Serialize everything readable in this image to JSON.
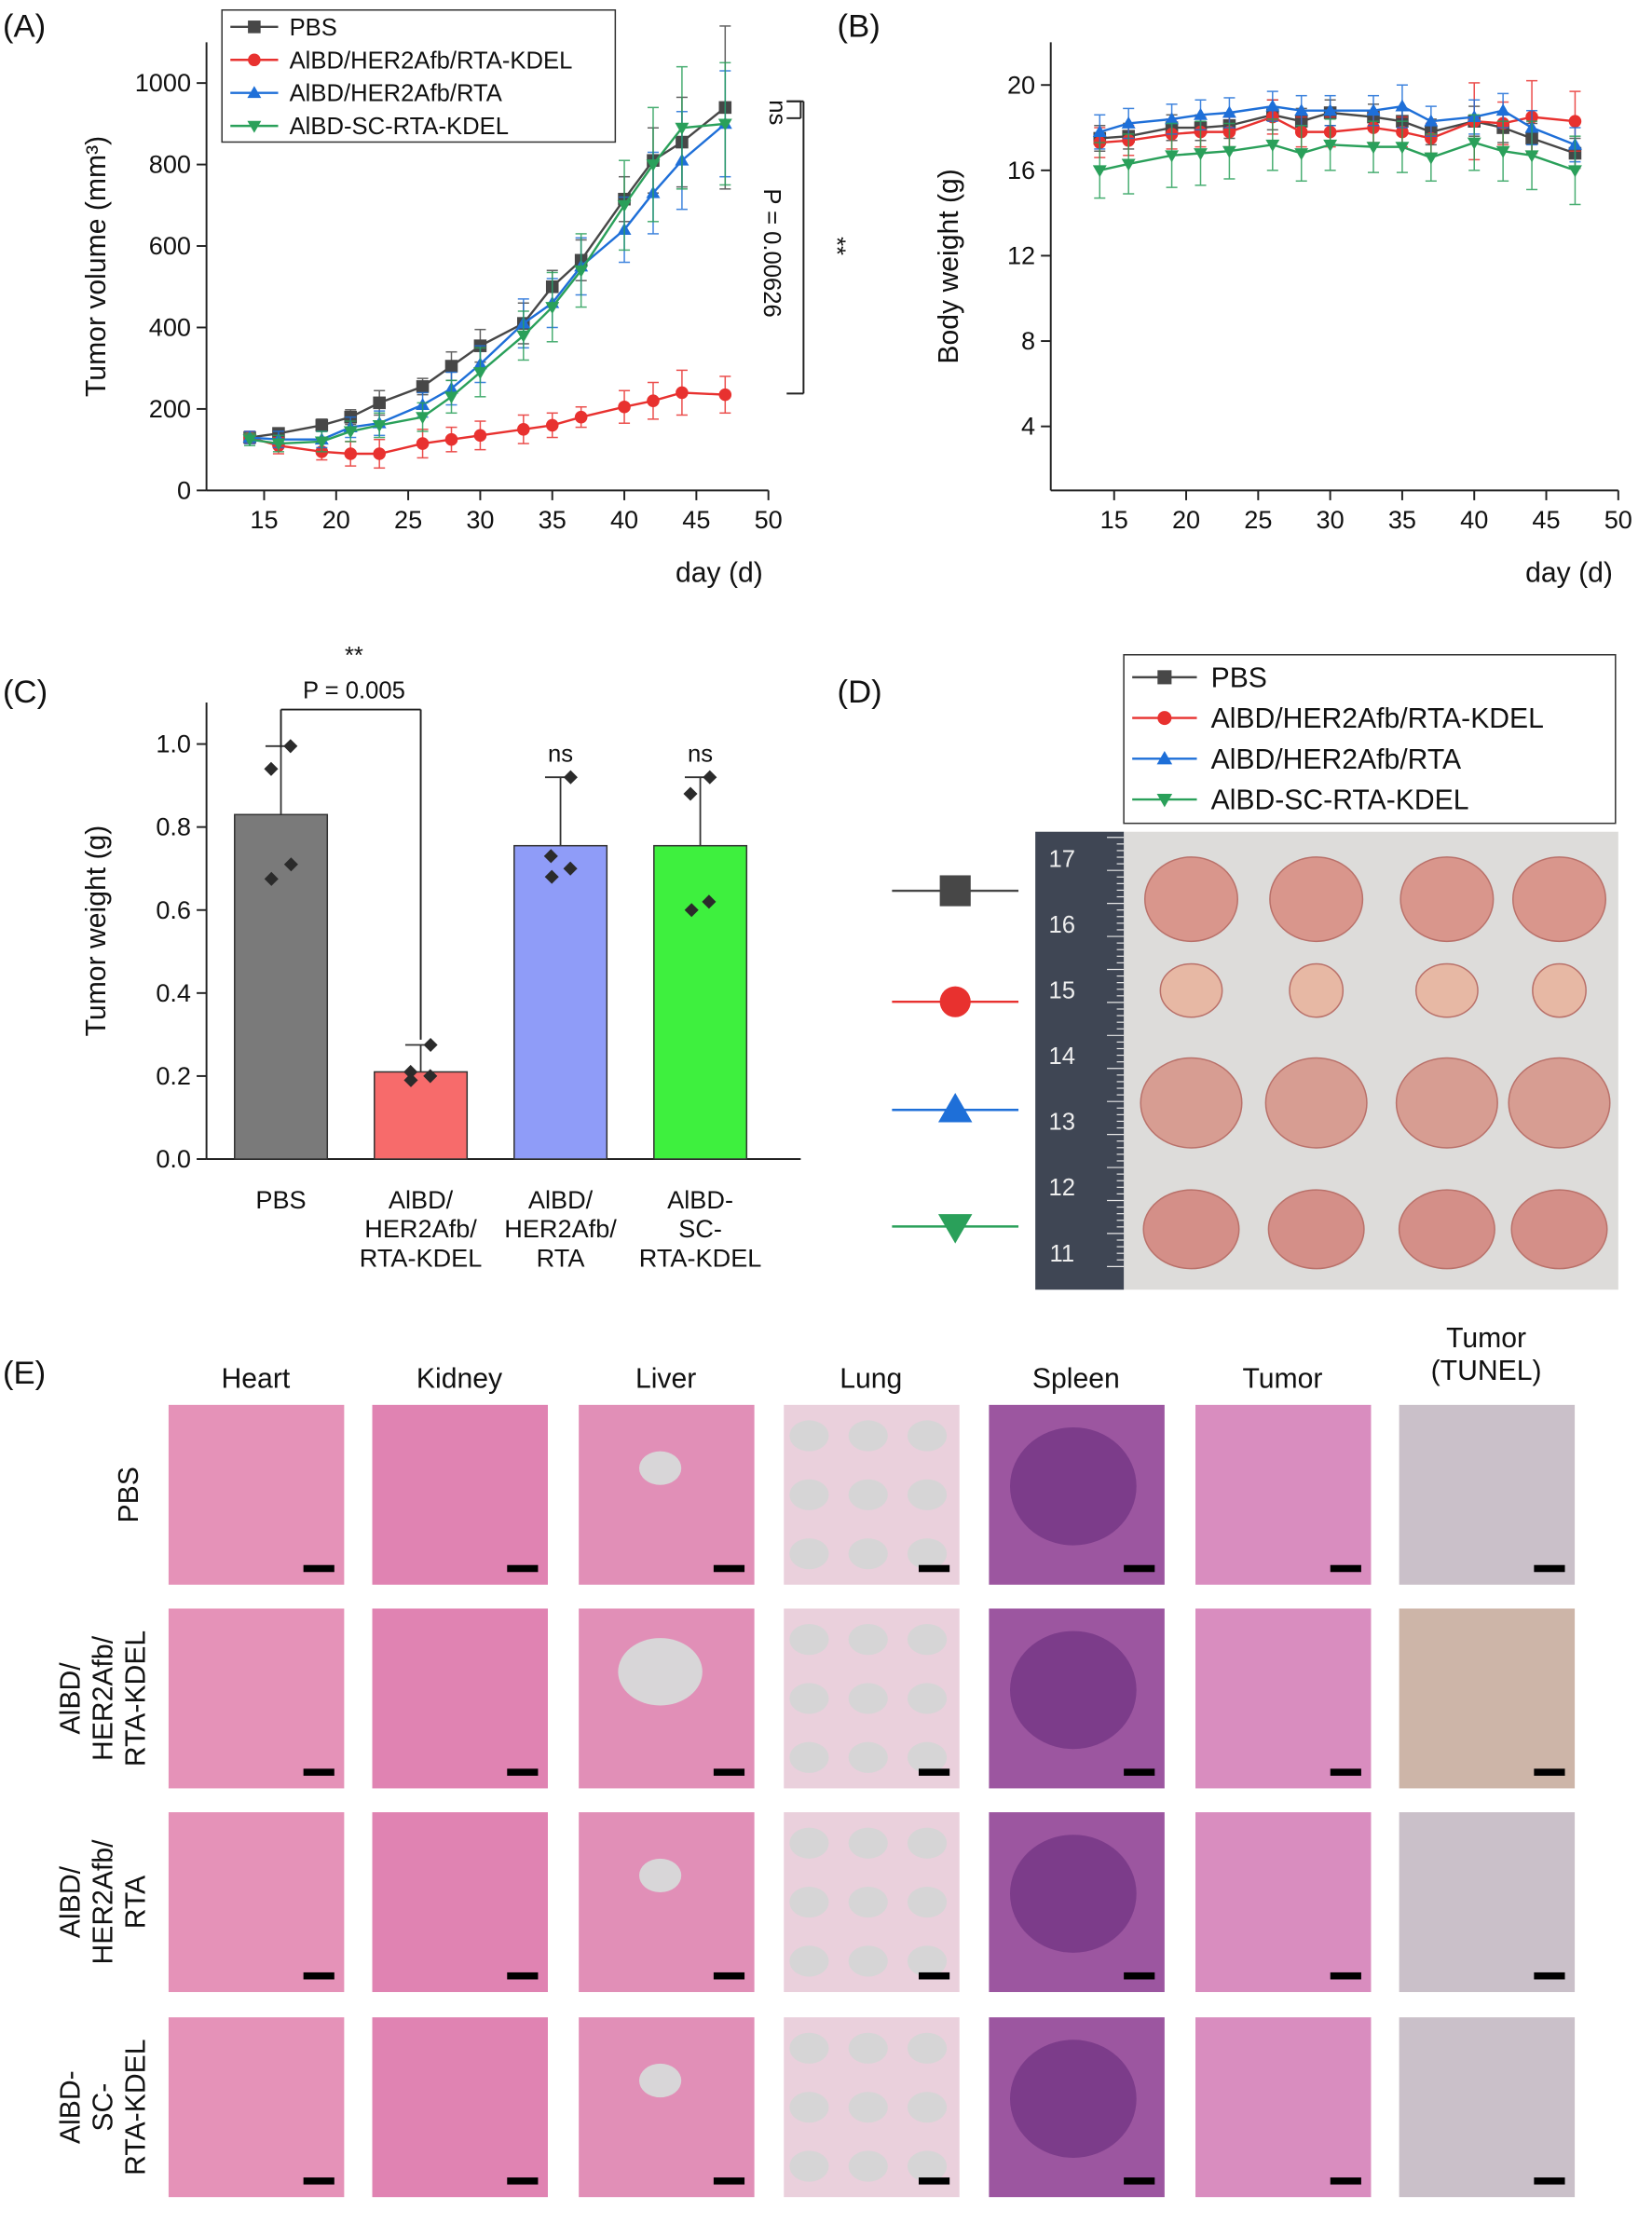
{
  "chart_data": [
    {
      "type": "line",
      "panel_label": "(A)",
      "y_label": "Tumor volume (mm³)",
      "x_label": "day (d)",
      "x": [
        14,
        16,
        19,
        21,
        23,
        26,
        28,
        30,
        33,
        35,
        37,
        40,
        42,
        44,
        47
      ],
      "xlim": [
        11,
        50
      ],
      "xticks": [
        15,
        20,
        25,
        30,
        35,
        40,
        45,
        50
      ],
      "ylim": [
        0,
        1100
      ],
      "yticks": [
        0,
        200,
        400,
        600,
        800,
        1000
      ],
      "legend": "upper left",
      "series": [
        {
          "name": "PBS",
          "color": "#474747",
          "marker": "square",
          "values": [
            130,
            140,
            160,
            180,
            215,
            255,
            305,
            355,
            410,
            500,
            565,
            715,
            810,
            855,
            940
          ],
          "errors": [
            12,
            12,
            15,
            18,
            30,
            20,
            35,
            40,
            50,
            40,
            50,
            55,
            80,
            110,
            200
          ]
        },
        {
          "name": "AlBD/HER2Afb/RTA-KDEL",
          "color": "#e8312f",
          "marker": "circle",
          "values": [
            130,
            110,
            95,
            90,
            90,
            115,
            125,
            135,
            150,
            160,
            180,
            205,
            220,
            240,
            235
          ],
          "errors": [
            15,
            20,
            20,
            30,
            35,
            35,
            30,
            35,
            35,
            30,
            25,
            40,
            45,
            55,
            45
          ]
        },
        {
          "name": "AlBD/HER2Afb/RTA",
          "color": "#1e6fd8",
          "marker": "tri-up",
          "values": [
            130,
            125,
            125,
            155,
            165,
            210,
            250,
            310,
            410,
            460,
            550,
            640,
            730,
            810,
            900
          ],
          "errors": [
            15,
            20,
            20,
            25,
            30,
            30,
            40,
            45,
            60,
            60,
            70,
            80,
            100,
            120,
            130
          ]
        },
        {
          "name": "AlBD-SC-RTA-KDEL",
          "color": "#2aa05a",
          "marker": "tri-down",
          "values": [
            125,
            115,
            120,
            145,
            160,
            180,
            230,
            290,
            380,
            450,
            540,
            700,
            800,
            890,
            900
          ],
          "errors": [
            15,
            20,
            25,
            25,
            30,
            35,
            40,
            60,
            60,
            85,
            90,
            110,
            140,
            150,
            150
          ]
        }
      ],
      "annotations": [
        "ns",
        "P = 0.00626",
        "**"
      ]
    },
    {
      "type": "line",
      "panel_label": "(B)",
      "y_label": "Body weight (g)",
      "x_label": "day (d)",
      "x": [
        14,
        16,
        19,
        21,
        23,
        26,
        28,
        30,
        33,
        35,
        37,
        40,
        42,
        44,
        47
      ],
      "xlim": [
        10.6,
        50
      ],
      "xticks": [
        15,
        20,
        25,
        30,
        35,
        40,
        45,
        50
      ],
      "ylim": [
        1,
        22
      ],
      "yticks": [
        4,
        8,
        12,
        16,
        20
      ],
      "series": [
        {
          "name": "PBS",
          "color": "#474747",
          "marker": "square",
          "values": [
            17.5,
            17.6,
            18,
            18,
            18.1,
            18.6,
            18.3,
            18.7,
            18.5,
            18.3,
            17.8,
            18.3,
            18,
            17.5,
            16.8
          ],
          "errors": [
            0.6,
            0.6,
            0.6,
            0.6,
            0.6,
            0.7,
            0.6,
            0.6,
            0.6,
            0.6,
            0.6,
            0.7,
            0.7,
            0.7,
            0.7
          ]
        },
        {
          "name": "AlBD/HER2Afb/RTA-KDEL",
          "color": "#e8312f",
          "marker": "circle",
          "values": [
            17.3,
            17.4,
            17.7,
            17.8,
            17.8,
            18.5,
            17.8,
            17.8,
            18,
            17.8,
            17.5,
            18.3,
            18.2,
            18.5,
            18.3
          ],
          "errors": [
            0.7,
            0.7,
            0.7,
            0.7,
            0.7,
            0.8,
            0.7,
            0.7,
            0.7,
            0.7,
            0.7,
            1.8,
            1,
            1.7,
            1.4
          ]
        },
        {
          "name": "AlBD/HER2Afb/RTA",
          "color": "#1e6fd8",
          "marker": "tri-up",
          "values": [
            17.8,
            18.2,
            18.4,
            18.6,
            18.7,
            19,
            18.8,
            18.8,
            18.8,
            19,
            18.3,
            18.5,
            18.8,
            18,
            17.2
          ],
          "errors": [
            0.8,
            0.7,
            0.7,
            0.7,
            0.7,
            0.7,
            0.7,
            0.7,
            0.7,
            1,
            0.7,
            0.8,
            0.8,
            0.8,
            0.8
          ]
        },
        {
          "name": "AlBD-SC-RTA-KDEL",
          "color": "#2aa05a",
          "marker": "tri-down",
          "values": [
            16,
            16.3,
            16.7,
            16.8,
            16.9,
            17.2,
            16.8,
            17.2,
            17.1,
            17.1,
            16.6,
            17.3,
            16.9,
            16.7,
            16
          ],
          "errors": [
            1.3,
            1.4,
            1.5,
            1.5,
            1.3,
            1.2,
            1.3,
            1.2,
            1.2,
            1.2,
            1.1,
            1.3,
            1.4,
            1.6,
            1.6
          ]
        }
      ]
    },
    {
      "type": "bar",
      "panel_label": "(C)",
      "y_label": "Tumor weight (g)",
      "categories": [
        "PBS",
        "AlBD/\nHER2Afb/\nRTA-KDEL",
        "AlBD/\nHER2Afb/\nRTA",
        "AlBD-\nSC-\nRTA-KDEL"
      ],
      "values": [
        0.83,
        0.21,
        0.755,
        0.755
      ],
      "errors": [
        0.165,
        0.065,
        0.165,
        0.165
      ],
      "colors": [
        "#7a7a7a",
        "#f76b6b",
        "#8f9cf8",
        "#3ef03e"
      ],
      "points": [
        [
          0.995,
          0.94,
          0.71,
          0.675
        ],
        [
          0.275,
          0.21,
          0.2,
          0.19
        ],
        [
          0.92,
          0.73,
          0.7,
          0.68
        ],
        [
          0.92,
          0.88,
          0.62,
          0.6
        ]
      ],
      "ylim": [
        0,
        1.1
      ],
      "yticks": [
        {
          "value": 0,
          "label": "0.0"
        },
        0.2,
        0.4,
        0.6,
        0.8,
        {
          "value": 1,
          "label": "1.0"
        }
      ],
      "annotations": [
        "**",
        "P = 0.005",
        "ns",
        "ns"
      ]
    }
  ],
  "panel_d": {
    "panel_label": "(D)",
    "ruler_labels": [
      "17",
      "16",
      "15",
      "14",
      "13",
      "12",
      "11"
    ]
  },
  "panel_e": {
    "panel_label": "(E)",
    "columns": [
      "Heart",
      "Kidney",
      "Liver",
      "Lung",
      "Spleen",
      "Tumor",
      "Tumor\n(TUNEL)"
    ],
    "rows": [
      "PBS",
      "AlBD/\nHER2Afb/\nRTA-KDEL",
      "AlBD/\nHER2Afb/\nRTA",
      "AlBD-\nSC-\nRTA-KDEL"
    ]
  }
}
